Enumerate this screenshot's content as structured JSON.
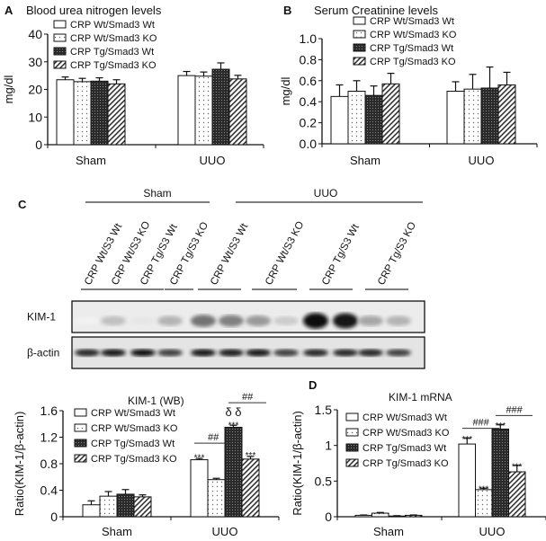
{
  "legend": [
    "CRP Wt/Smad3 Wt",
    "CRP Wt/Smad3 KO",
    "CRP Tg/Smad3 Wt",
    "CRP Tg/Smad3 KO"
  ],
  "chart_data": [
    {
      "id": "A",
      "panel_letter": "A",
      "type": "bar",
      "title": "Blood urea nitrogen levels",
      "xlabel": "",
      "ylabel": "mg/dl",
      "ylim": [
        0,
        40
      ],
      "yticks": [
        0,
        10,
        20,
        30,
        40
      ],
      "ytick_labels": [
        "0",
        "10",
        "20",
        "30",
        "40"
      ],
      "categories": [
        "Sham",
        "UUO"
      ],
      "series": [
        {
          "name": "CRP Wt/Smad3 Wt",
          "values": [
            23.5,
            25.0
          ],
          "errors": [
            1.0,
            1.5
          ]
        },
        {
          "name": "CRP Wt/Smad3 KO",
          "values": [
            22.8,
            24.8
          ],
          "errors": [
            1.2,
            1.5
          ]
        },
        {
          "name": "CRP Tg/Smad3 Wt",
          "values": [
            23.0,
            27.3
          ],
          "errors": [
            1.2,
            2.3
          ]
        },
        {
          "name": "CRP Tg/Smad3 KO",
          "values": [
            22.0,
            23.8
          ],
          "errors": [
            1.5,
            1.3
          ]
        }
      ],
      "annotations": [],
      "legend_position": "top-left"
    },
    {
      "id": "B",
      "panel_letter": "B",
      "type": "bar",
      "title": "Serum Creatinine levels",
      "xlabel": "",
      "ylabel": "mg/dl",
      "ylim": [
        0,
        1.0
      ],
      "yticks": [
        0,
        0.2,
        0.4,
        0.6,
        0.8,
        1.0
      ],
      "ytick_labels": [
        "0.0",
        "0.2",
        "0.4",
        "0.6",
        "0.8",
        "1.0"
      ],
      "categories": [
        "Sham",
        "UUO"
      ],
      "series": [
        {
          "name": "CRP Wt/Smad3 Wt",
          "values": [
            0.45,
            0.5
          ],
          "errors": [
            0.11,
            0.09
          ]
        },
        {
          "name": "CRP Wt/Smad3 KO",
          "values": [
            0.5,
            0.52
          ],
          "errors": [
            0.1,
            0.14
          ]
        },
        {
          "name": "CRP Tg/Smad3 Wt",
          "values": [
            0.46,
            0.53
          ],
          "errors": [
            0.09,
            0.2
          ]
        },
        {
          "name": "CRP Tg/Smad3 KO",
          "values": [
            0.57,
            0.56
          ],
          "errors": [
            0.1,
            0.12
          ]
        }
      ],
      "annotations": [],
      "legend_position": "top-left"
    },
    {
      "id": "WB",
      "panel_letter": "",
      "type": "bar",
      "title": "KIM-1 (WB)",
      "xlabel": "",
      "ylabel": "Ratio(KIM-1/β-actin)",
      "ylim": [
        0,
        1.6
      ],
      "yticks": [
        0,
        0.4,
        0.8,
        1.2,
        1.6
      ],
      "ytick_labels": [
        "0",
        "0.4",
        "0.8",
        "1.2",
        "1.6"
      ],
      "categories": [
        "Sham",
        "UUO"
      ],
      "series": [
        {
          "name": "CRP Wt/Smad3 Wt",
          "values": [
            0.18,
            0.86
          ],
          "errors": [
            0.06,
            0.02
          ]
        },
        {
          "name": "CRP Wt/Smad3 KO",
          "values": [
            0.31,
            0.56
          ],
          "errors": [
            0.07,
            0.02
          ]
        },
        {
          "name": "CRP Tg/Smad3 Wt",
          "values": [
            0.34,
            1.35
          ],
          "errors": [
            0.07,
            0.03
          ]
        },
        {
          "name": "CRP Tg/Smad3 KO",
          "values": [
            0.3,
            0.87
          ],
          "errors": [
            0.03,
            0.04
          ]
        }
      ],
      "annotations": [
        {
          "kind": "text",
          "category": 1,
          "series": 0,
          "y": 0.93,
          "text": "***"
        },
        {
          "kind": "text",
          "category": 1,
          "series": 2,
          "y": 1.42,
          "text": "***"
        },
        {
          "kind": "text",
          "category": 1,
          "series": 2,
          "y": 1.52,
          "text": "δ δ"
        },
        {
          "kind": "text",
          "category": 1,
          "series": 3,
          "y": 0.96,
          "text": "***"
        },
        {
          "kind": "bracket",
          "category": 1,
          "from": 0,
          "to": 1,
          "y": 1.11,
          "text": "##"
        },
        {
          "kind": "bracket",
          "category": 1,
          "from": 2,
          "to": 3,
          "y": 1.72,
          "text": "##"
        }
      ],
      "legend_position": "top-left"
    },
    {
      "id": "D",
      "panel_letter": "D",
      "type": "bar",
      "title": "KIM-1 mRNA",
      "xlabel": "",
      "ylabel": "Ratio(KIM-1/β-actin)",
      "ylim": [
        0,
        1.5
      ],
      "yticks": [
        0,
        0.5,
        1,
        1.5
      ],
      "ytick_labels": [
        "0",
        "0.5",
        "1",
        "1.5"
      ],
      "categories": [
        "Sham",
        "UUO"
      ],
      "series": [
        {
          "name": "CRP Wt/Smad3 Wt",
          "values": [
            0.02,
            1.02
          ],
          "errors": [
            0.005,
            0.08
          ]
        },
        {
          "name": "CRP Wt/Smad3 KO",
          "values": [
            0.05,
            0.38
          ],
          "errors": [
            0.01,
            0.02
          ]
        },
        {
          "name": "CRP Tg/Smad3 Wt",
          "values": [
            0.01,
            1.23
          ],
          "errors": [
            0.005,
            0.06
          ]
        },
        {
          "name": "CRP Tg/Smad3 KO",
          "values": [
            0.02,
            0.63
          ],
          "errors": [
            0.005,
            0.09
          ]
        }
      ],
      "annotations": [
        {
          "kind": "text",
          "category": 1,
          "series": 0,
          "y": 1.12,
          "text": "***"
        },
        {
          "kind": "text",
          "category": 1,
          "series": 1,
          "y": 0.42,
          "text": "***"
        },
        {
          "kind": "text",
          "category": 1,
          "series": 2,
          "y": 1.31,
          "text": "***"
        },
        {
          "kind": "text",
          "category": 1,
          "series": 3,
          "y": 0.74,
          "text": "***"
        },
        {
          "kind": "bracket",
          "category": 1,
          "from": 0,
          "to": 1,
          "y": 1.24,
          "text": "###"
        },
        {
          "kind": "bracket",
          "category": 1,
          "from": 2,
          "to": 3,
          "y": 1.42,
          "text": "###"
        }
      ],
      "legend_position": "top-left"
    }
  ],
  "blot": {
    "panel_letter": "C",
    "groups": [
      "Sham",
      "UUO"
    ],
    "lane_labels": [
      "CRP Wt/S3 Wt",
      "CRP Wt/S3 KO",
      "CRP Tg/S3 Wt",
      "CRP Tg/S3 KO",
      "CRP Wt/S3 Wt",
      "CRP Wt/S3 KO",
      "CRP Tg/S3 Wt",
      "CRP Tg/S3 KO"
    ],
    "rows": [
      {
        "label": "KIM-1",
        "intensity": [
          0.05,
          0.25,
          0.1,
          0.3,
          0.55,
          0.5,
          0.4,
          0.2,
          0.95,
          0.9,
          0.35,
          0.3
        ]
      },
      {
        "label": "β-actin",
        "intensity": [
          0.85,
          0.9,
          0.95,
          0.75,
          0.9,
          0.88,
          0.9,
          0.75,
          0.85,
          0.85,
          0.85,
          0.75
        ]
      }
    ]
  }
}
